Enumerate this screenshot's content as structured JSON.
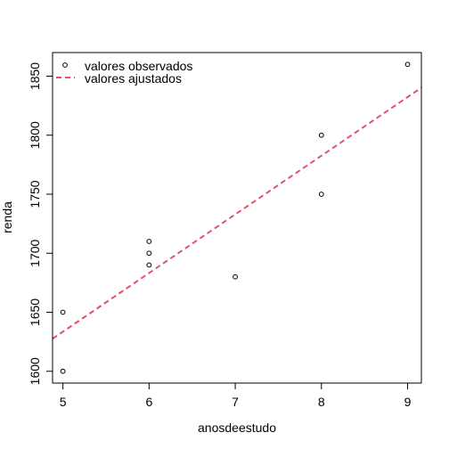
{
  "chart_data": {
    "type": "scatter",
    "title": "",
    "xlabel": "anosdeestudo",
    "ylabel": "renda",
    "xlim": [
      4.88,
      9.16
    ],
    "ylim": [
      1590,
      1870
    ],
    "x_ticks": [
      5,
      6,
      7,
      8,
      9
    ],
    "y_ticks": [
      1600,
      1650,
      1700,
      1750,
      1800,
      1850
    ],
    "grid": false,
    "legend_position": "top-left",
    "series": [
      {
        "name": "valores observados",
        "kind": "points",
        "marker": "open-circle",
        "color": "#000000",
        "points": [
          {
            "x": 5,
            "y": 1600
          },
          {
            "x": 5,
            "y": 1650
          },
          {
            "x": 6,
            "y": 1690
          },
          {
            "x": 6,
            "y": 1700
          },
          {
            "x": 6,
            "y": 1710
          },
          {
            "x": 7,
            "y": 1680
          },
          {
            "x": 8,
            "y": 1750
          },
          {
            "x": 8,
            "y": 1800
          },
          {
            "x": 9,
            "y": 1860
          }
        ]
      },
      {
        "name": "valores ajustados",
        "kind": "line",
        "style": "dashed",
        "color": "#DF536B",
        "intercept": 1385,
        "slope": 49.7
      }
    ]
  }
}
